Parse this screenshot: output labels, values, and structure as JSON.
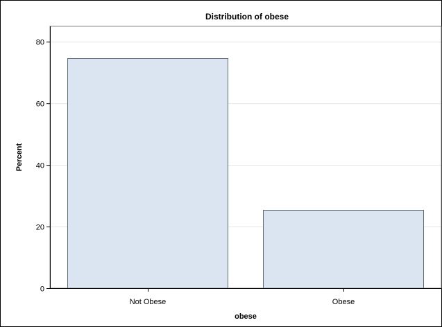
{
  "chart_data": {
    "type": "bar",
    "title": "Distribution of obese",
    "xlabel": "obese",
    "ylabel": "Percent",
    "categories": [
      "Not Obese",
      "Obese"
    ],
    "values": [
      74.7,
      25.3
    ],
    "ylim": [
      0,
      85
    ],
    "yticks": [
      0,
      20,
      40,
      60,
      80
    ],
    "grid": true,
    "colors": {
      "bar_fill": "#dbe5f1",
      "bar_stroke": "#5f6b7a",
      "grid": "#e6e6e6"
    }
  }
}
